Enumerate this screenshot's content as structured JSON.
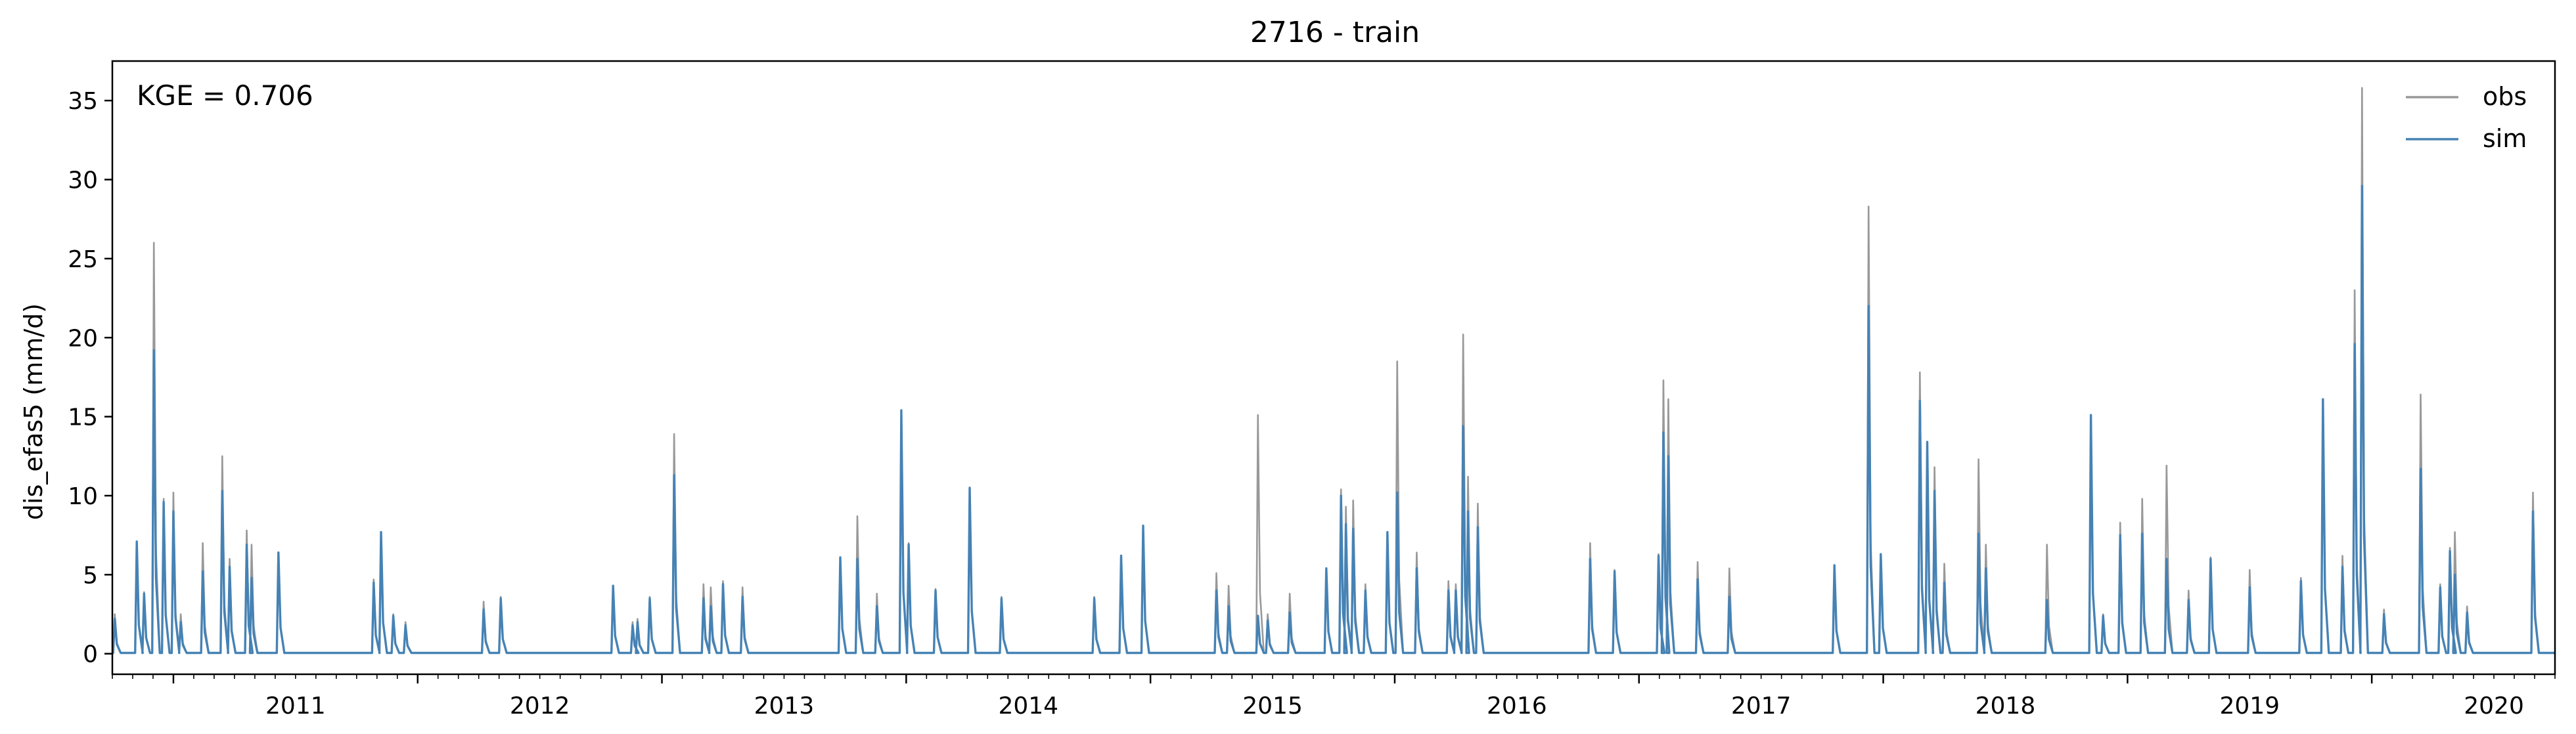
{
  "chart_data": {
    "type": "line",
    "title": "2716 - train",
    "xlabel": "",
    "ylabel": "dis_efas5 (mm/d)",
    "annotation": "KGE = 0.706",
    "x_start": "2010-10-01",
    "x_end": "2020-09-30",
    "xlim": [
      2010.75,
      2020.75
    ],
    "ylim": [
      -1.3,
      37.5
    ],
    "x_ticks": [
      {
        "value": 2011,
        "label": "2011"
      },
      {
        "value": 2012,
        "label": "2012"
      },
      {
        "value": 2013,
        "label": "2013"
      },
      {
        "value": 2014,
        "label": "2014"
      },
      {
        "value": 2015,
        "label": "2015"
      },
      {
        "value": 2016,
        "label": "2016"
      },
      {
        "value": 2017,
        "label": "2017"
      },
      {
        "value": 2018,
        "label": "2018"
      },
      {
        "value": 2019,
        "label": "2019"
      },
      {
        "value": 2020,
        "label": "2020"
      }
    ],
    "y_ticks": [
      {
        "value": 0,
        "label": "0"
      },
      {
        "value": 5,
        "label": "5"
      },
      {
        "value": 10,
        "label": "10"
      },
      {
        "value": 15,
        "label": "15"
      },
      {
        "value": 20,
        "label": "20"
      },
      {
        "value": 25,
        "label": "25"
      },
      {
        "value": 30,
        "label": "30"
      },
      {
        "value": 35,
        "label": "35"
      }
    ],
    "legend_position": "upper right",
    "baseline": 0.05,
    "series": [
      {
        "name": "obs",
        "color": "#999999",
        "peaks": [
          [
            2010.76,
            2.5
          ],
          [
            2010.85,
            7.1
          ],
          [
            2010.88,
            3.9
          ],
          [
            2010.92,
            26.0
          ],
          [
            2010.96,
            9.8
          ],
          [
            2011.0,
            10.2
          ],
          [
            2011.03,
            2.5
          ],
          [
            2011.12,
            7.0
          ],
          [
            2011.2,
            12.5
          ],
          [
            2011.23,
            6.0
          ],
          [
            2011.3,
            7.8
          ],
          [
            2011.32,
            6.9
          ],
          [
            2011.43,
            6.4
          ],
          [
            2011.82,
            4.7
          ],
          [
            2011.85,
            7.7
          ],
          [
            2011.9,
            2.5
          ],
          [
            2011.95,
            2.0
          ],
          [
            2012.27,
            3.3
          ],
          [
            2012.34,
            3.6
          ],
          [
            2012.8,
            4.3
          ],
          [
            2012.88,
            2.0
          ],
          [
            2012.9,
            2.2
          ],
          [
            2012.95,
            3.6
          ],
          [
            2013.05,
            13.9
          ],
          [
            2013.17,
            4.4
          ],
          [
            2013.2,
            4.2
          ],
          [
            2013.25,
            4.6
          ],
          [
            2013.33,
            4.2
          ],
          [
            2013.73,
            6.1
          ],
          [
            2013.8,
            8.7
          ],
          [
            2013.88,
            3.8
          ],
          [
            2013.98,
            15.4
          ],
          [
            2014.01,
            7.0
          ],
          [
            2014.12,
            4.1
          ],
          [
            2014.26,
            10.5
          ],
          [
            2014.39,
            3.6
          ],
          [
            2014.77,
            3.6
          ],
          [
            2014.88,
            6.2
          ],
          [
            2014.97,
            8.1
          ],
          [
            2015.27,
            5.1
          ],
          [
            2015.32,
            4.3
          ],
          [
            2015.44,
            15.1
          ],
          [
            2015.48,
            2.5
          ],
          [
            2015.57,
            3.8
          ],
          [
            2015.72,
            5.4
          ],
          [
            2015.78,
            10.4
          ],
          [
            2015.8,
            9.3
          ],
          [
            2015.83,
            9.7
          ],
          [
            2015.88,
            4.4
          ],
          [
            2015.97,
            7.7
          ],
          [
            2016.01,
            18.5
          ],
          [
            2016.09,
            6.4
          ],
          [
            2016.22,
            4.6
          ],
          [
            2016.25,
            4.4
          ],
          [
            2016.28,
            20.2
          ],
          [
            2016.3,
            11.2
          ],
          [
            2016.34,
            9.5
          ],
          [
            2016.8,
            7.0
          ],
          [
            2016.9,
            5.3
          ],
          [
            2017.08,
            6.3
          ],
          [
            2017.1,
            17.3
          ],
          [
            2017.12,
            16.1
          ],
          [
            2017.24,
            5.8
          ],
          [
            2017.37,
            5.4
          ],
          [
            2017.8,
            5.6
          ],
          [
            2017.94,
            28.3
          ],
          [
            2017.99,
            6.3
          ],
          [
            2018.15,
            17.8
          ],
          [
            2018.18,
            13.2
          ],
          [
            2018.21,
            11.8
          ],
          [
            2018.25,
            5.7
          ],
          [
            2018.39,
            12.3
          ],
          [
            2018.42,
            6.9
          ],
          [
            2018.67,
            6.9
          ],
          [
            2018.85,
            15.1
          ],
          [
            2018.9,
            2.5
          ],
          [
            2018.97,
            8.3
          ],
          [
            2019.06,
            9.8
          ],
          [
            2019.16,
            11.9
          ],
          [
            2019.25,
            4.0
          ],
          [
            2019.34,
            6.1
          ],
          [
            2019.5,
            5.3
          ],
          [
            2019.71,
            4.8
          ],
          [
            2019.8,
            16.1
          ],
          [
            2019.88,
            6.2
          ],
          [
            2019.93,
            23.0
          ],
          [
            2019.96,
            35.8
          ],
          [
            2020.05,
            2.8
          ],
          [
            2020.2,
            16.4
          ],
          [
            2020.28,
            4.4
          ],
          [
            2020.32,
            6.7
          ],
          [
            2020.34,
            7.7
          ],
          [
            2020.39,
            3.0
          ],
          [
            2020.66,
            10.2
          ]
        ]
      },
      {
        "name": "sim",
        "color": "#4682b4",
        "peaks": [
          [
            2010.76,
            2.2
          ],
          [
            2010.85,
            7.1
          ],
          [
            2010.88,
            3.8
          ],
          [
            2010.92,
            19.2
          ],
          [
            2010.96,
            9.6
          ],
          [
            2011.0,
            9.0
          ],
          [
            2011.03,
            2.0
          ],
          [
            2011.12,
            5.2
          ],
          [
            2011.2,
            10.3
          ],
          [
            2011.23,
            5.5
          ],
          [
            2011.3,
            6.9
          ],
          [
            2011.32,
            4.8
          ],
          [
            2011.43,
            6.4
          ],
          [
            2011.82,
            4.5
          ],
          [
            2011.85,
            7.7
          ],
          [
            2011.9,
            2.4
          ],
          [
            2011.95,
            1.8
          ],
          [
            2012.27,
            2.8
          ],
          [
            2012.34,
            3.5
          ],
          [
            2012.8,
            4.3
          ],
          [
            2012.88,
            1.8
          ],
          [
            2012.9,
            2.0
          ],
          [
            2012.95,
            3.5
          ],
          [
            2013.05,
            11.3
          ],
          [
            2013.17,
            3.5
          ],
          [
            2013.2,
            3.0
          ],
          [
            2013.25,
            4.4
          ],
          [
            2013.33,
            3.6
          ],
          [
            2013.73,
            6.1
          ],
          [
            2013.8,
            6.0
          ],
          [
            2013.88,
            3.0
          ],
          [
            2013.98,
            15.4
          ],
          [
            2014.01,
            6.9
          ],
          [
            2014.12,
            4.0
          ],
          [
            2014.26,
            10.5
          ],
          [
            2014.39,
            3.5
          ],
          [
            2014.77,
            3.5
          ],
          [
            2014.88,
            6.2
          ],
          [
            2014.97,
            8.1
          ],
          [
            2015.27,
            4.0
          ],
          [
            2015.32,
            3.0
          ],
          [
            2015.44,
            2.4
          ],
          [
            2015.48,
            2.1
          ],
          [
            2015.57,
            2.6
          ],
          [
            2015.72,
            5.4
          ],
          [
            2015.78,
            10.0
          ],
          [
            2015.8,
            8.2
          ],
          [
            2015.83,
            7.9
          ],
          [
            2015.88,
            4.0
          ],
          [
            2015.97,
            7.7
          ],
          [
            2016.01,
            10.2
          ],
          [
            2016.09,
            5.4
          ],
          [
            2016.22,
            4.0
          ],
          [
            2016.25,
            4.0
          ],
          [
            2016.28,
            14.4
          ],
          [
            2016.3,
            9.0
          ],
          [
            2016.34,
            8.0
          ],
          [
            2016.8,
            6.0
          ],
          [
            2016.9,
            5.2
          ],
          [
            2017.08,
            6.2
          ],
          [
            2017.1,
            14.0
          ],
          [
            2017.12,
            12.5
          ],
          [
            2017.24,
            4.7
          ],
          [
            2017.37,
            3.6
          ],
          [
            2017.8,
            5.6
          ],
          [
            2017.94,
            22.0
          ],
          [
            2017.99,
            6.3
          ],
          [
            2018.15,
            16.0
          ],
          [
            2018.18,
            13.4
          ],
          [
            2018.21,
            10.3
          ],
          [
            2018.25,
            4.5
          ],
          [
            2018.39,
            7.6
          ],
          [
            2018.42,
            5.4
          ],
          [
            2018.67,
            3.4
          ],
          [
            2018.85,
            15.1
          ],
          [
            2018.9,
            2.4
          ],
          [
            2018.97,
            7.5
          ],
          [
            2019.06,
            7.6
          ],
          [
            2019.16,
            6.0
          ],
          [
            2019.25,
            3.4
          ],
          [
            2019.34,
            6.0
          ],
          [
            2019.5,
            4.2
          ],
          [
            2019.71,
            4.6
          ],
          [
            2019.8,
            16.1
          ],
          [
            2019.88,
            5.5
          ],
          [
            2019.93,
            19.6
          ],
          [
            2019.96,
            29.6
          ],
          [
            2020.05,
            2.5
          ],
          [
            2020.2,
            11.7
          ],
          [
            2020.28,
            4.2
          ],
          [
            2020.32,
            6.5
          ],
          [
            2020.34,
            5.0
          ],
          [
            2020.39,
            2.6
          ],
          [
            2020.66,
            9.0
          ]
        ]
      }
    ]
  }
}
